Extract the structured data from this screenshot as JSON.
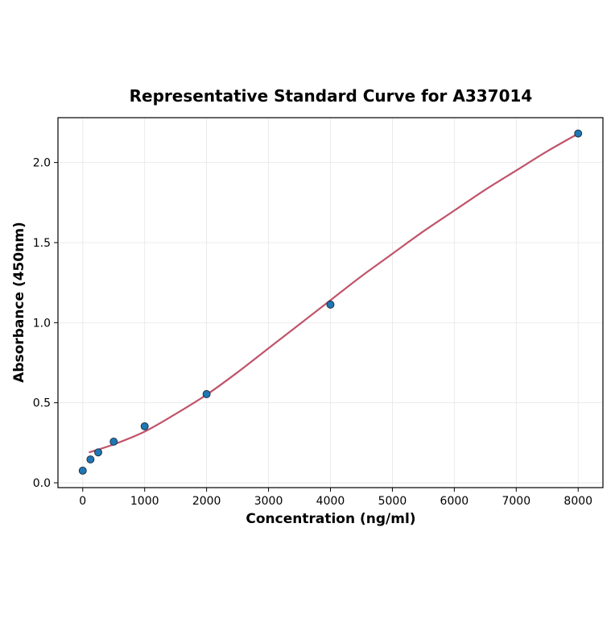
{
  "chart_data": {
    "type": "scatter",
    "title": "Representative Standard Curve for A337014",
    "xlabel": "Concentration (ng/ml)",
    "ylabel": "Absorbance (450nm)",
    "xlim": [
      -400,
      8400
    ],
    "ylim": [
      -0.03,
      2.28
    ],
    "xticks": [
      0,
      1000,
      2000,
      3000,
      4000,
      5000,
      6000,
      7000,
      8000
    ],
    "yticks": [
      "0.0",
      "0.5",
      "1.0",
      "1.5",
      "2.0"
    ],
    "grid": true,
    "series": [
      {
        "type": "scatter",
        "x": [
          0,
          125,
          250,
          500,
          1000,
          2000,
          4000,
          8000
        ],
        "y": [
          0.076,
          0.146,
          0.19,
          0.257,
          0.353,
          0.554,
          1.113,
          2.181
        ],
        "color": "#1f77b4"
      },
      {
        "type": "line",
        "x": [
          100,
          500,
          1000,
          1500,
          2000,
          2500,
          3000,
          3500,
          4000,
          4500,
          5000,
          5500,
          6000,
          6500,
          7000,
          7500,
          8000
        ],
        "y": [
          0.19,
          0.24,
          0.32,
          0.43,
          0.55,
          0.69,
          0.84,
          0.99,
          1.14,
          1.29,
          1.43,
          1.57,
          1.7,
          1.83,
          1.95,
          2.07,
          2.18
        ],
        "color": "#c0546a"
      }
    ]
  }
}
